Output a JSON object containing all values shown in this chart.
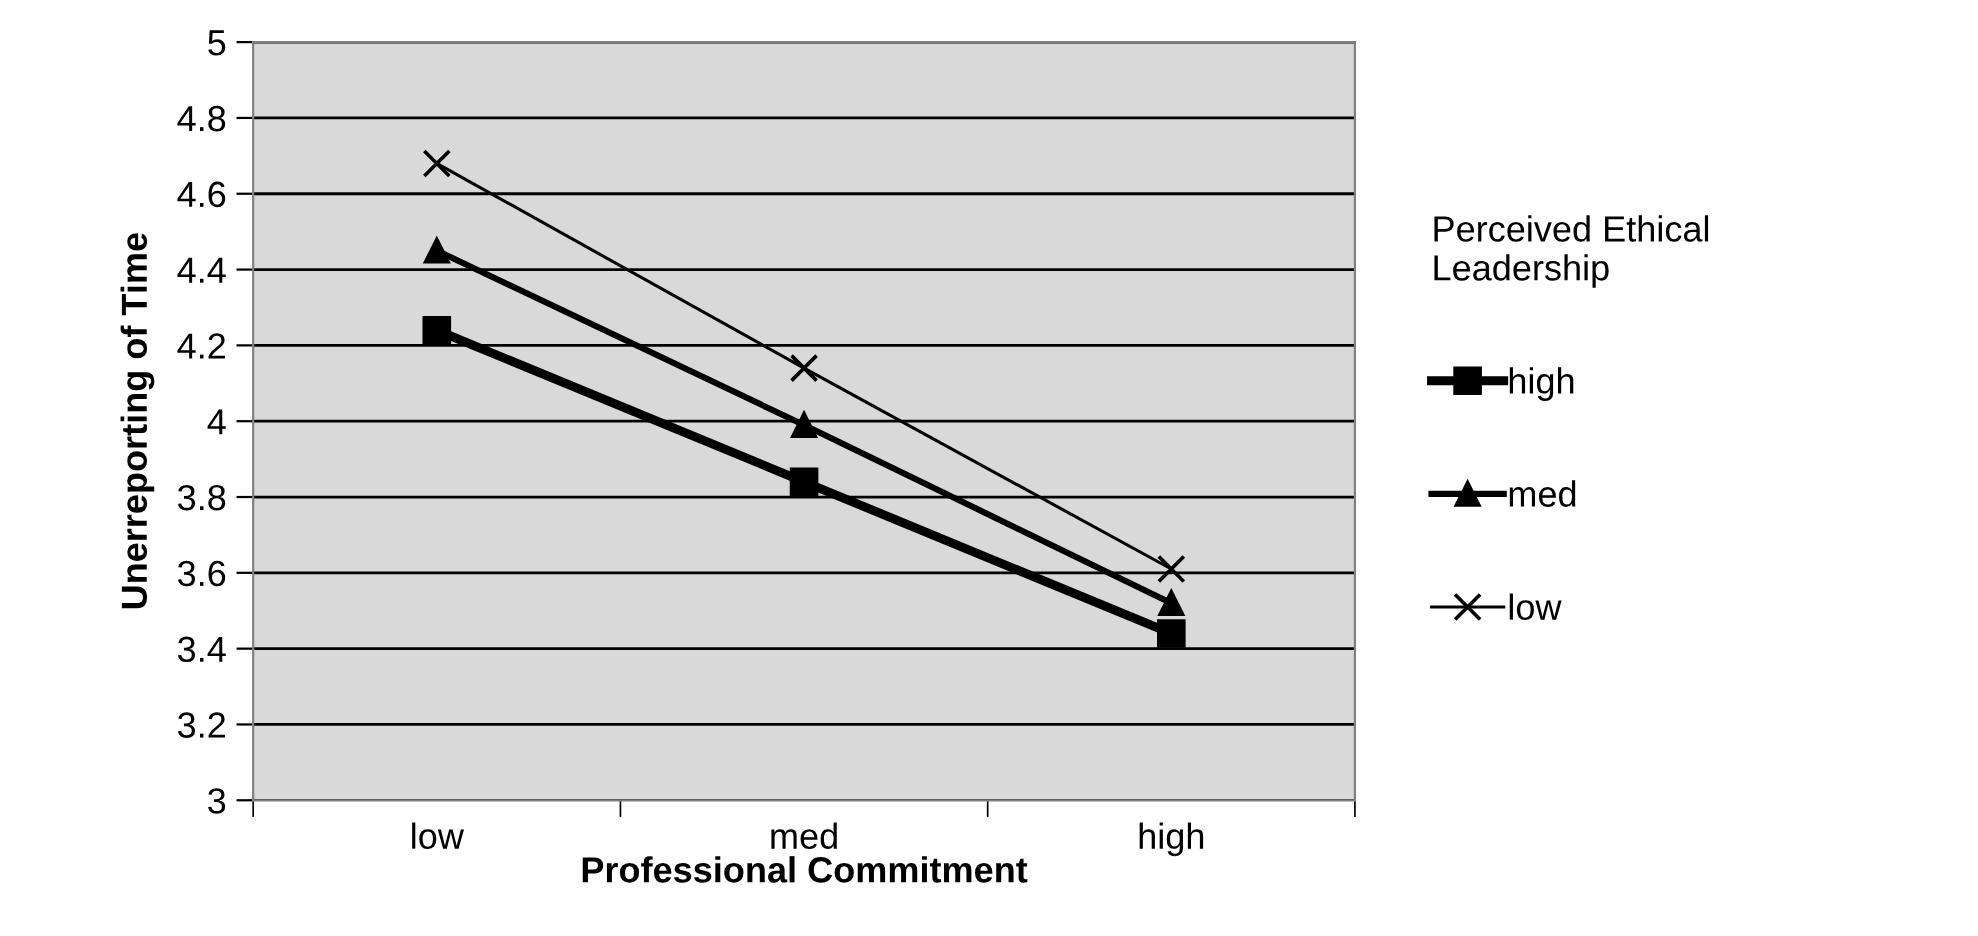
{
  "chart_data": {
    "type": "line",
    "xlabel": "Professional Commitment",
    "ylabel": "Unerreporting of Time",
    "legend_title": "Perceived Ethical Leadership",
    "categories": [
      "low",
      "med",
      "high"
    ],
    "series": [
      {
        "name": "high",
        "color": "#000000",
        "marker": "square",
        "values": [
          4.24,
          3.84,
          3.44
        ]
      },
      {
        "name": "med",
        "color": "#000000",
        "marker": "triangle",
        "values": [
          4.45,
          3.99,
          3.52
        ]
      },
      {
        "name": "low",
        "color": "#000000",
        "marker": "cross",
        "values": [
          4.68,
          4.14,
          3.61
        ]
      }
    ],
    "ylim": [
      3,
      5
    ],
    "yticks": [
      3,
      3.2,
      3.4,
      3.6,
      3.8,
      4,
      4.2,
      4.4,
      4.6,
      4.8,
      5
    ],
    "grid": "y",
    "legend": "right",
    "line_style": "solid"
  }
}
